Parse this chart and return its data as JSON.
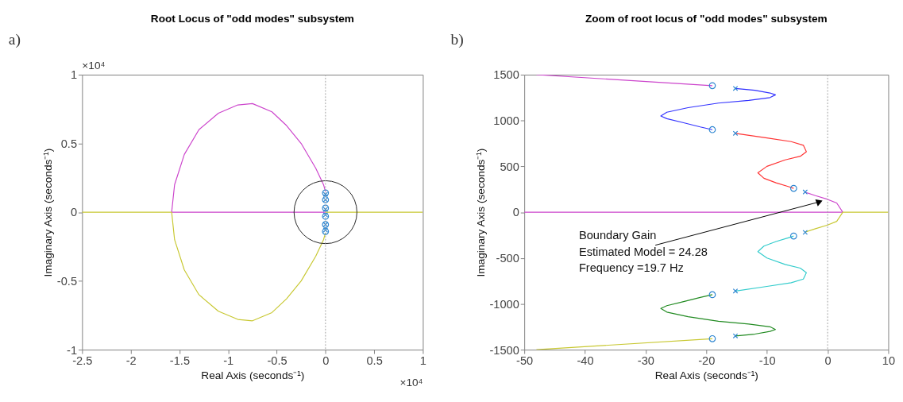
{
  "chart_data": [
    {
      "type": "line",
      "title": "Root Locus of \"odd modes\" subsystem",
      "xlabel": "Real Axis (seconds⁻¹)",
      "ylabel": "Imaginary Axis (seconds⁻¹)",
      "annotations": [
        "a)",
        "×10⁴",
        "×10⁴"
      ],
      "xlim": [
        -2.5,
        1
      ],
      "xticks": [
        -2.5,
        -2,
        -1.5,
        -1,
        -0.5,
        0,
        0.5,
        1
      ],
      "ylim": [
        -1,
        1
      ],
      "yticks": [
        -1,
        -0.5,
        0,
        0.5,
        1
      ],
      "grid": false,
      "ref_lines": [
        {
          "axis": "x",
          "value": 0,
          "color": "#a0a0a0",
          "line_style": "dotted"
        }
      ],
      "series": [
        {
          "color": "#cc44cc",
          "x": [
            0,
            -0.02,
            -0.1,
            -0.25,
            -0.4,
            -0.55,
            -0.75,
            -0.9,
            -1.1,
            -1.3,
            -1.45,
            -1.55,
            -1.58,
            0
          ],
          "values": [
            0.15,
            0.2,
            0.32,
            0.5,
            0.63,
            0.73,
            0.79,
            0.78,
            0.72,
            0.6,
            0.42,
            0.2,
            0,
            0
          ]
        },
        {
          "color": "#c8c832",
          "x": [
            0,
            -0.02,
            -0.1,
            -0.25,
            -0.4,
            -0.55,
            -0.75,
            -0.9,
            -1.1,
            -1.3,
            -1.45,
            -1.55,
            -1.58
          ],
          "values": [
            -0.15,
            -0.2,
            -0.32,
            -0.5,
            -0.63,
            -0.73,
            -0.79,
            -0.78,
            -0.72,
            -0.6,
            -0.42,
            -0.2,
            0
          ]
        },
        {
          "color": "#c8c832",
          "x": [
            -2.5,
            -1.58
          ],
          "values": [
            0,
            0
          ]
        },
        {
          "color": "#c8c832",
          "x": [
            0,
            1
          ],
          "values": [
            0,
            0
          ]
        },
        {
          "type": "scatter",
          "marker": "circle",
          "color": "#2e86d1",
          "x": [
            0,
            0,
            0,
            0,
            0,
            0
          ],
          "values": [
            0.14,
            0.09,
            0.03,
            -0.03,
            -0.09,
            -0.14
          ]
        },
        {
          "type": "scatter",
          "marker": "cross",
          "color": "#2e86d1",
          "x": [
            0,
            0,
            0,
            0,
            0,
            0
          ],
          "values": [
            0.13,
            0.09,
            0.02,
            -0.02,
            -0.09,
            -0.13
          ]
        }
      ]
    },
    {
      "type": "line",
      "title": "Zoom of root locus of \"odd modes\" subsystem",
      "xlabel": "Real Axis (seconds⁻¹)",
      "ylabel": "Imaginary Axis (seconds⁻¹)",
      "annotations": [
        "b)",
        {
          "text": "Boundary Gain\nEstimated Model = 24.28\nFrequency =19.7 Hz",
          "x": -1.5,
          "y": 110
        }
      ],
      "xlim": [
        -50,
        10
      ],
      "xticks": [
        -50,
        -40,
        -30,
        -20,
        -10,
        0,
        10
      ],
      "ylim": [
        -1500,
        1500
      ],
      "yticks": [
        -1500,
        -1000,
        -500,
        0,
        500,
        1000,
        1500
      ],
      "grid": false,
      "ref_lines": [
        {
          "axis": "x",
          "value": 0,
          "color": "#a0a0a0",
          "line_style": "dotted"
        }
      ],
      "series": [
        {
          "color": "#cc44cc",
          "x": [
            -48,
            -19
          ],
          "values": [
            1500,
            1380
          ]
        },
        {
          "color": "#3333ff",
          "x": [
            -15.2,
            -12,
            -9.5,
            -8.6,
            -9.5,
            -13,
            -18,
            -23,
            -26.5,
            -27.5,
            -26.5,
            -24,
            -21,
            -19
          ],
          "values": [
            1350,
            1330,
            1300,
            1280,
            1250,
            1220,
            1190,
            1140,
            1090,
            1050,
            1020,
            980,
            930,
            900
          ]
        },
        {
          "color": "#ff3333",
          "x": [
            -15.2,
            -10,
            -6,
            -4,
            -3.5,
            -4.5,
            -7,
            -10,
            -11.5,
            -10.5,
            -8.5,
            -6.5,
            -5.6
          ],
          "values": [
            860,
            810,
            770,
            730,
            660,
            610,
            570,
            500,
            430,
            370,
            320,
            280,
            260
          ]
        },
        {
          "color": "#cc44cc",
          "x": [
            -3.8,
            -2,
            0,
            1.5,
            2.5
          ],
          "values": [
            220,
            180,
            140,
            100,
            0
          ]
        },
        {
          "color": "#cc44cc",
          "x": [
            -50,
            2.5
          ],
          "values": [
            0,
            0
          ]
        },
        {
          "color": "#c8c832",
          "x": [
            2.5,
            1.5,
            0,
            -2,
            -3.8
          ],
          "values": [
            0,
            -100,
            -140,
            -180,
            -220
          ]
        },
        {
          "color": "#c8c832",
          "x": [
            2.5,
            10
          ],
          "values": [
            0,
            0
          ]
        },
        {
          "color": "#33cccc",
          "x": [
            -15.2,
            -10,
            -6,
            -4,
            -3.5,
            -4.5,
            -7,
            -10,
            -11.5,
            -10.5,
            -8.5,
            -6.5,
            -5.6
          ],
          "values": [
            -860,
            -810,
            -770,
            -730,
            -660,
            -610,
            -570,
            -500,
            -430,
            -370,
            -320,
            -280,
            -260
          ]
        },
        {
          "color": "#228b22",
          "x": [
            -15.2,
            -12,
            -9.5,
            -8.6,
            -9.5,
            -13,
            -18,
            -23,
            -26.5,
            -27.5,
            -26.5,
            -24,
            -21,
            -19
          ],
          "values": [
            -1350,
            -1330,
            -1300,
            -1280,
            -1250,
            -1220,
            -1190,
            -1140,
            -1090,
            -1050,
            -1020,
            -980,
            -930,
            -900
          ]
        },
        {
          "color": "#c8c832",
          "x": [
            -48,
            -19
          ],
          "values": [
            -1500,
            -1380
          ]
        },
        {
          "type": "scatter",
          "marker": "circle",
          "color": "#2e86d1",
          "x": [
            -19,
            -19,
            -5.6,
            -5.6,
            -19,
            -19
          ],
          "values": [
            1380,
            900,
            260,
            -260,
            -900,
            -1380
          ]
        },
        {
          "type": "scatter",
          "marker": "cross",
          "color": "#2e86d1",
          "x": [
            -15.2,
            -15.2,
            -3.7,
            -3.7,
            -15.2,
            -15.2
          ],
          "values": [
            1350,
            860,
            220,
            -220,
            -860,
            -1350
          ]
        }
      ]
    }
  ]
}
